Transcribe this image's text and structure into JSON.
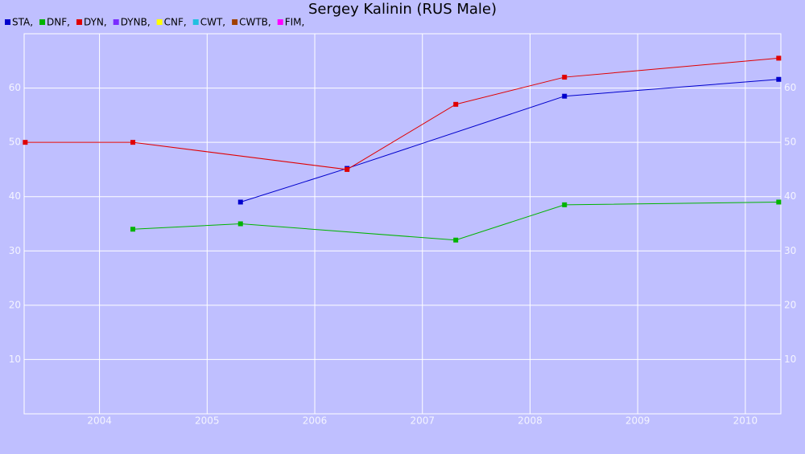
{
  "chart_data": {
    "type": "line",
    "title": "Sergey Kalinin (RUS Male)",
    "xlim": [
      2003.3,
      2010.33
    ],
    "xticks": [
      2004,
      2005,
      2006,
      2007,
      2008,
      2009,
      2010
    ],
    "ylim": [
      0,
      70
    ],
    "yticks": [
      10,
      20,
      30,
      40,
      50,
      60
    ],
    "grid": true,
    "series": [
      {
        "name": "STA,",
        "color": "#0000cc",
        "x": [
          2005.31,
          2006.3,
          2008.32,
          2010.31
        ],
        "values": [
          39,
          45.2,
          58.5,
          61.6
        ]
      },
      {
        "name": "DNF,",
        "color": "#00b400",
        "x": [
          2004.31,
          2005.31,
          2007.31,
          2008.32,
          2010.31
        ],
        "values": [
          34,
          35,
          32,
          38.5,
          39
        ]
      },
      {
        "name": "DYN,",
        "color": "#e00000",
        "x": [
          2003.31,
          2004.31,
          2006.3,
          2007.31,
          2008.32,
          2010.31
        ],
        "values": [
          50,
          50,
          45,
          57,
          62,
          65.5
        ]
      },
      {
        "name": "DYNB,",
        "color": "#7a2cff",
        "x": [],
        "values": []
      },
      {
        "name": "CNF,",
        "color": "#ffff00",
        "x": [],
        "values": []
      },
      {
        "name": "CWT,",
        "color": "#20c0e0",
        "x": [],
        "values": []
      },
      {
        "name": "CWTB,",
        "color": "#a04000",
        "x": [],
        "values": []
      },
      {
        "name": "FIM,",
        "color": "#ff00ff",
        "x": [],
        "values": []
      }
    ]
  }
}
